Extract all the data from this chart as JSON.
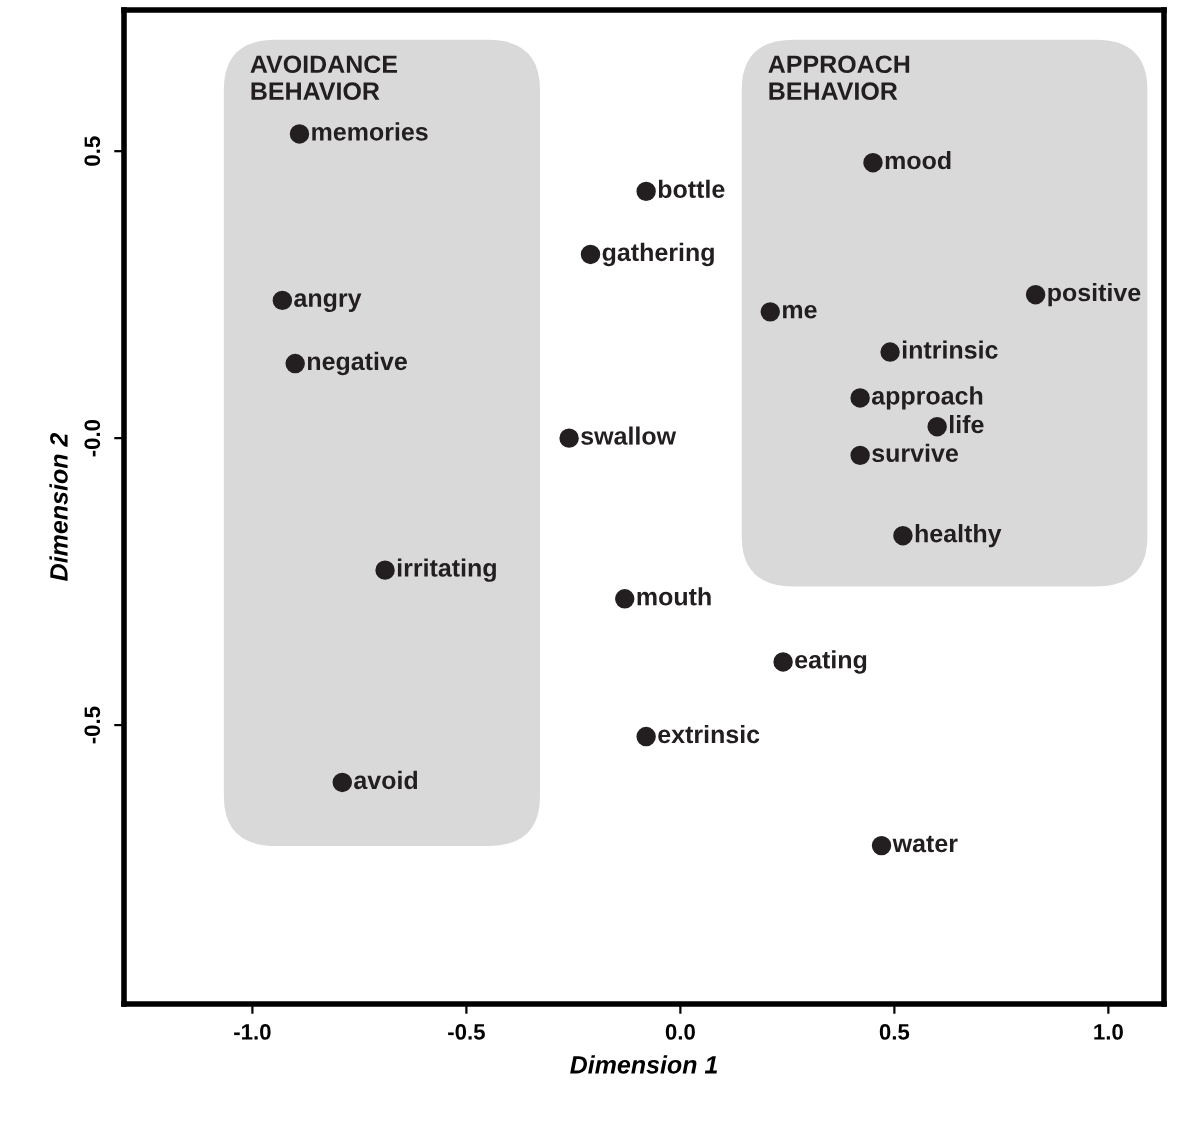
{
  "chart_data": {
    "type": "scatter",
    "xlabel": "Dimension 1",
    "ylabel": "Dimension 2",
    "annotations": [
      "AVOIDANCE\nBEHAVIOR",
      "APPROACH\nBEHAVIOR"
    ],
    "series": [
      {
        "name": "memories",
        "x": [
          -0.89
        ],
        "values": [
          0.53
        ]
      },
      {
        "name": "angry",
        "x": [
          -0.93
        ],
        "values": [
          0.24
        ]
      },
      {
        "name": "negative",
        "x": [
          -0.9
        ],
        "values": [
          0.13
        ]
      },
      {
        "name": "irritating",
        "x": [
          -0.69
        ],
        "values": [
          -0.23
        ]
      },
      {
        "name": "avoid",
        "x": [
          -0.79
        ],
        "values": [
          -0.6
        ]
      },
      {
        "name": "bottle",
        "x": [
          -0.08
        ],
        "values": [
          0.43
        ]
      },
      {
        "name": "gathering",
        "x": [
          -0.21
        ],
        "values": [
          0.32
        ]
      },
      {
        "name": "swallow",
        "x": [
          -0.26
        ],
        "values": [
          0.0
        ]
      },
      {
        "name": "mouth",
        "x": [
          -0.13
        ],
        "values": [
          -0.28
        ]
      },
      {
        "name": "extrinsic",
        "x": [
          -0.08
        ],
        "values": [
          -0.52
        ]
      },
      {
        "name": "eating",
        "x": [
          0.24
        ],
        "values": [
          -0.39
        ]
      },
      {
        "name": "water",
        "x": [
          0.47
        ],
        "values": [
          -0.71
        ]
      },
      {
        "name": "mood",
        "x": [
          0.45
        ],
        "values": [
          0.48
        ]
      },
      {
        "name": "positive",
        "x": [
          0.83
        ],
        "values": [
          0.25
        ]
      },
      {
        "name": "me",
        "x": [
          0.21
        ],
        "values": [
          0.22
        ]
      },
      {
        "name": "intrinsic",
        "x": [
          0.49
        ],
        "values": [
          0.15
        ]
      },
      {
        "name": "approach",
        "x": [
          0.42
        ],
        "values": [
          0.07
        ]
      },
      {
        "name": "life",
        "x": [
          0.6
        ],
        "values": [
          0.02
        ]
      },
      {
        "name": "survive",
        "x": [
          0.42
        ],
        "values": [
          -0.03
        ]
      },
      {
        "name": "healthy",
        "x": [
          0.52
        ],
        "values": [
          -0.17
        ]
      }
    ],
    "color": "#231f20",
    "marker": "circle",
    "grid": false,
    "legend": false,
    "xlim": [
      -1.3,
      1.13
    ],
    "ylim": [
      -0.986,
      0.746
    ],
    "xticks": [
      {
        "value": -1,
        "label": "-1.0"
      },
      {
        "value": -0.5,
        "label": "-0.5"
      },
      {
        "value": 0,
        "label": "0.0"
      },
      {
        "value": 0.5,
        "label": "0.5"
      },
      {
        "value": 1,
        "label": "1.0"
      }
    ],
    "yticks": [
      {
        "value": -0.5,
        "label": "-0.5"
      },
      {
        "value": 0.0,
        "label": "-0.0"
      },
      {
        "value": 0.5,
        "label": "0.5"
      }
    ]
  }
}
